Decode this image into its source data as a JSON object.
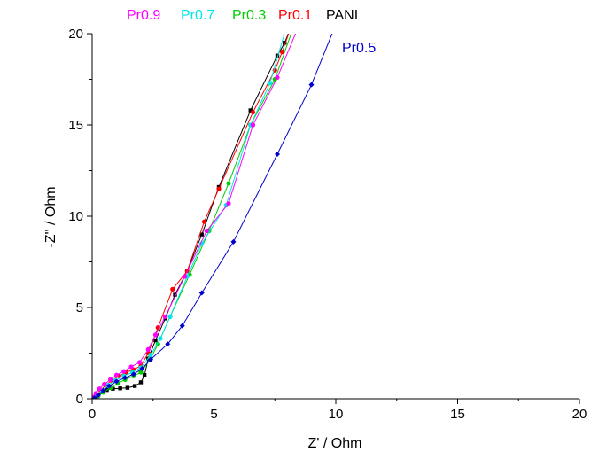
{
  "chart_data": {
    "type": "scatter",
    "xlabel": "Z' / Ohm",
    "ylabel": "-Z'' / Ohm",
    "xlim": [
      0,
      20
    ],
    "ylim": [
      0,
      20
    ],
    "xticks": [
      0,
      5,
      10,
      15,
      20
    ],
    "yticks": [
      0,
      5,
      10,
      15,
      20
    ],
    "grid": false,
    "legend_top": [
      {
        "name": "Pr0.9",
        "color": "#ff00ff"
      },
      {
        "name": "Pr0.7",
        "color": "#00e5e5"
      },
      {
        "name": "Pr0.3",
        "color": "#00cc00"
      },
      {
        "name": "Pr0.1",
        "color": "#ff0000"
      },
      {
        "name": "PANI",
        "color": "#000000"
      }
    ],
    "legend_right": [
      {
        "name": "Pr0.5",
        "color": "#0000cc"
      }
    ],
    "series": [
      {
        "name": "PANI",
        "color": "#000000",
        "points": [
          [
            0.12,
            0.05
          ],
          [
            0.25,
            0.2
          ],
          [
            0.4,
            0.35
          ],
          [
            0.6,
            0.48
          ],
          [
            0.85,
            0.55
          ],
          [
            1.15,
            0.57
          ],
          [
            1.45,
            0.6
          ],
          [
            1.75,
            0.7
          ],
          [
            2.0,
            0.9
          ],
          [
            2.15,
            1.3
          ],
          [
            2.3,
            2.2
          ],
          [
            2.6,
            3.2
          ],
          [
            3.0,
            4.4
          ],
          [
            3.4,
            5.7
          ],
          [
            3.9,
            7.0
          ],
          [
            4.5,
            9.0
          ],
          [
            5.2,
            11.6
          ],
          [
            6.5,
            15.8
          ],
          [
            7.6,
            18.8
          ],
          [
            7.9,
            19.5
          ],
          [
            8.2,
            20.5
          ]
        ]
      },
      {
        "name": "Pr0.1",
        "color": "#ff0000",
        "points": [
          [
            0.1,
            0.05
          ],
          [
            0.2,
            0.2
          ],
          [
            0.35,
            0.45
          ],
          [
            0.55,
            0.75
          ],
          [
            0.8,
            1.0
          ],
          [
            1.1,
            1.25
          ],
          [
            1.4,
            1.45
          ],
          [
            1.7,
            1.6
          ],
          [
            2.0,
            1.8
          ],
          [
            2.3,
            2.5
          ],
          [
            2.7,
            3.9
          ],
          [
            3.3,
            6.0
          ],
          [
            3.9,
            7.0
          ],
          [
            4.6,
            9.7
          ],
          [
            5.2,
            11.5
          ],
          [
            6.6,
            15.7
          ],
          [
            7.5,
            18.0
          ],
          [
            7.8,
            19.0
          ],
          [
            8.2,
            20.5
          ]
        ]
      },
      {
        "name": "Pr0.3",
        "color": "#00cc00",
        "points": [
          [
            0.1,
            0.05
          ],
          [
            0.25,
            0.15
          ],
          [
            0.45,
            0.35
          ],
          [
            0.75,
            0.6
          ],
          [
            1.05,
            0.85
          ],
          [
            1.35,
            1.05
          ],
          [
            1.7,
            1.25
          ],
          [
            2.0,
            1.45
          ],
          [
            2.4,
            2.2
          ],
          [
            2.7,
            3.0
          ],
          [
            3.2,
            4.5
          ],
          [
            4.0,
            6.8
          ],
          [
            4.8,
            9.2
          ],
          [
            5.6,
            11.8
          ],
          [
            6.5,
            15.0
          ],
          [
            7.5,
            17.5
          ],
          [
            8.3,
            20.5
          ]
        ]
      },
      {
        "name": "Pr0.7",
        "color": "#00e5e5",
        "points": [
          [
            0.1,
            0.05
          ],
          [
            0.2,
            0.2
          ],
          [
            0.4,
            0.45
          ],
          [
            0.65,
            0.75
          ],
          [
            0.95,
            1.0
          ],
          [
            1.3,
            1.25
          ],
          [
            1.65,
            1.45
          ],
          [
            2.0,
            1.7
          ],
          [
            2.4,
            2.4
          ],
          [
            2.8,
            3.3
          ],
          [
            3.2,
            4.5
          ],
          [
            3.9,
            6.7
          ],
          [
            4.5,
            8.5
          ],
          [
            5.5,
            10.6
          ],
          [
            6.5,
            15.0
          ],
          [
            7.3,
            17.3
          ],
          [
            8.0,
            20.5
          ]
        ]
      },
      {
        "name": "Pr0.9",
        "color": "#ff00ff",
        "points": [
          [
            0.05,
            0.1
          ],
          [
            0.15,
            0.3
          ],
          [
            0.3,
            0.55
          ],
          [
            0.5,
            0.8
          ],
          [
            0.75,
            1.05
          ],
          [
            1.0,
            1.3
          ],
          [
            1.3,
            1.5
          ],
          [
            1.6,
            1.75
          ],
          [
            1.95,
            2.0
          ],
          [
            2.3,
            2.7
          ],
          [
            2.6,
            3.5
          ],
          [
            3.0,
            4.5
          ],
          [
            3.8,
            6.7
          ],
          [
            4.7,
            9.2
          ],
          [
            5.6,
            10.7
          ],
          [
            6.6,
            15.0
          ],
          [
            7.6,
            17.6
          ],
          [
            8.5,
            20.5
          ]
        ]
      },
      {
        "name": "Pr0.5",
        "color": "#0000cc",
        "points": [
          [
            0.1,
            0.05
          ],
          [
            0.25,
            0.2
          ],
          [
            0.45,
            0.45
          ],
          [
            0.7,
            0.7
          ],
          [
            1.0,
            0.95
          ],
          [
            1.35,
            1.15
          ],
          [
            1.7,
            1.35
          ],
          [
            2.05,
            1.65
          ],
          [
            2.4,
            2.15
          ],
          [
            3.1,
            3.0
          ],
          [
            3.7,
            4.0
          ],
          [
            4.5,
            5.8
          ],
          [
            5.8,
            8.6
          ],
          [
            7.6,
            13.4
          ],
          [
            9.0,
            17.2
          ],
          [
            10.0,
            20.5
          ]
        ]
      }
    ]
  }
}
